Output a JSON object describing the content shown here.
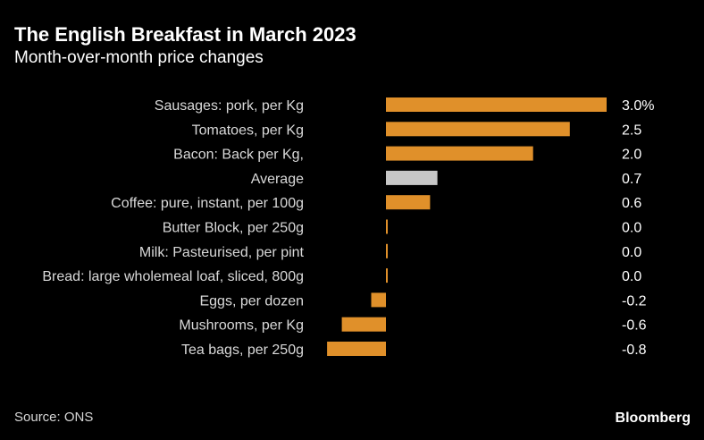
{
  "header": {
    "title": "The English Breakfast in March 2023",
    "subtitle": "Month-over-month price changes"
  },
  "footer": {
    "source": "Source: ONS",
    "brand": "Bloomberg"
  },
  "colors": {
    "bar": "#e0902a",
    "average_bar": "#c7c7c7",
    "background": "#000000",
    "label_text": "#d9d9d9",
    "value_text": "#ffffff"
  },
  "chart_data": {
    "type": "bar",
    "orientation": "horizontal",
    "title": "The English Breakfast in March 2023",
    "subtitle": "Month-over-month price changes",
    "unit": "%",
    "xlim": [
      -1.0,
      3.0
    ],
    "grid": false,
    "legend": "none",
    "categories": [
      "Sausages: pork, per Kg",
      "Tomatoes, per Kg",
      "Bacon: Back per Kg,",
      "Average",
      "Coffee: pure, instant, per 100g",
      "Butter Block, per 250g",
      "Milk: Pasteurised, per pint",
      "Bread: large wholemeal loaf, sliced, 800g",
      "Eggs, per dozen",
      "Mushrooms, per Kg",
      "Tea bags, per 250g"
    ],
    "values": [
      3.0,
      2.5,
      2.0,
      0.7,
      0.6,
      0.0,
      0.0,
      0.0,
      -0.2,
      -0.6,
      -0.8
    ],
    "value_labels": [
      "3.0%",
      "2.5",
      "2.0",
      "0.7",
      "0.6",
      "0.0",
      "0.0",
      "0.0",
      "-0.2",
      "-0.6",
      "-0.8"
    ],
    "highlight": [
      "Average"
    ]
  }
}
